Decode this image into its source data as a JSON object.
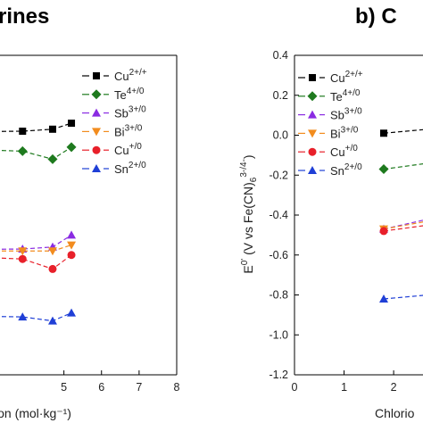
{
  "panels": {
    "left": {
      "title_fragment": "rines"
    },
    "right": {
      "title_fragment": "b)  C"
    }
  },
  "chart_data": [
    {
      "type": "line",
      "title": "rines",
      "xlabel": "ion (mol·kg⁻¹)",
      "x_ticks": [
        "5",
        "6",
        "7",
        "8"
      ],
      "x_tick_values": [
        5,
        6,
        7,
        8
      ],
      "xlim": [
        3.3,
        8
      ],
      "ylim": [
        -1.2,
        0.4
      ],
      "grid": false,
      "legend_position": "right",
      "series": [
        {
          "name": "Cu",
          "sup": "2+/+",
          "color": "#000000",
          "marker": "square",
          "x": [
            3.9,
            4.7,
            5.2
          ],
          "y": [
            0.02,
            0.03,
            0.06
          ]
        },
        {
          "name": "Te",
          "sup": "4+/0",
          "color": "#1e7a1e",
          "marker": "diamond",
          "x": [
            3.9,
            4.7,
            5.2
          ],
          "y": [
            -0.08,
            -0.12,
            -0.06
          ]
        },
        {
          "name": "Sb",
          "sup": "3+/0",
          "color": "#8a2be2",
          "marker": "triangle-up",
          "x": [
            3.9,
            4.7,
            5.2
          ],
          "y": [
            -0.57,
            -0.56,
            -0.5
          ]
        },
        {
          "name": "Bi",
          "sup": "3+/0",
          "color": "#f28c1e",
          "marker": "triangle-down",
          "x": [
            3.9,
            4.7,
            5.2
          ],
          "y": [
            -0.58,
            -0.58,
            -0.55
          ]
        },
        {
          "name": "Cu",
          "sup": "+/0",
          "color": "#e8202a",
          "marker": "circle",
          "x": [
            3.9,
            4.7,
            5.2
          ],
          "y": [
            -0.62,
            -0.67,
            -0.6
          ]
        },
        {
          "name": "Sn",
          "sup": "2+/0",
          "color": "#1f3fd6",
          "marker": "triangle-up",
          "x": [
            3.9,
            4.7,
            5.2
          ],
          "y": [
            -0.91,
            -0.93,
            -0.89
          ]
        }
      ]
    },
    {
      "type": "line",
      "title": "b)  C",
      "xlabel": "Chlorio",
      "ylabel_main": "E",
      "ylabel_sup": "0'",
      "ylabel_rest": " (V vs Fe(CN)",
      "ylabel_sub": "6",
      "ylabel_sup2": "3-/4-",
      "ylabel_close": ")",
      "x_ticks": [
        "0",
        "1",
        "2"
      ],
      "x_tick_values": [
        0,
        1,
        2
      ],
      "xlim": [
        0,
        2.7
      ],
      "y_ticks": [
        "0.4",
        "0.2",
        "0.0",
        "-0.2",
        "-0.4",
        "-0.6",
        "-0.8",
        "-1.0",
        "-1.2"
      ],
      "y_tick_values": [
        0.4,
        0.2,
        0.0,
        -0.2,
        -0.4,
        -0.6,
        -0.8,
        -1.0,
        -1.2
      ],
      "ylim": [
        -1.2,
        0.4
      ],
      "grid": false,
      "legend_position": "top-left",
      "series": [
        {
          "name": "Cu",
          "sup": "2+/+",
          "color": "#000000",
          "marker": "square",
          "x": [
            1.8,
            2.7
          ],
          "y": [
            0.01,
            0.03
          ]
        },
        {
          "name": "Te",
          "sup": "4+/0",
          "color": "#1e7a1e",
          "marker": "diamond",
          "x": [
            1.8,
            2.7
          ],
          "y": [
            -0.17,
            -0.14
          ]
        },
        {
          "name": "Sb",
          "sup": "3+/0",
          "color": "#8a2be2",
          "marker": "triangle-up",
          "x": [
            1.8,
            2.7
          ],
          "y": [
            -0.47,
            -0.42
          ]
        },
        {
          "name": "Bi",
          "sup": "3+/0",
          "color": "#f28c1e",
          "marker": "triangle-down",
          "x": [
            1.8,
            2.7
          ],
          "y": [
            -0.47,
            -0.43
          ]
        },
        {
          "name": "Cu",
          "sup": "+/0",
          "color": "#e8202a",
          "marker": "circle",
          "x": [
            1.8,
            2.7
          ],
          "y": [
            -0.48,
            -0.45
          ]
        },
        {
          "name": "Sn",
          "sup": "2+/0",
          "color": "#1f3fd6",
          "marker": "triangle-up",
          "x": [
            1.8,
            2.7
          ],
          "y": [
            -0.82,
            -0.8
          ]
        }
      ]
    }
  ]
}
